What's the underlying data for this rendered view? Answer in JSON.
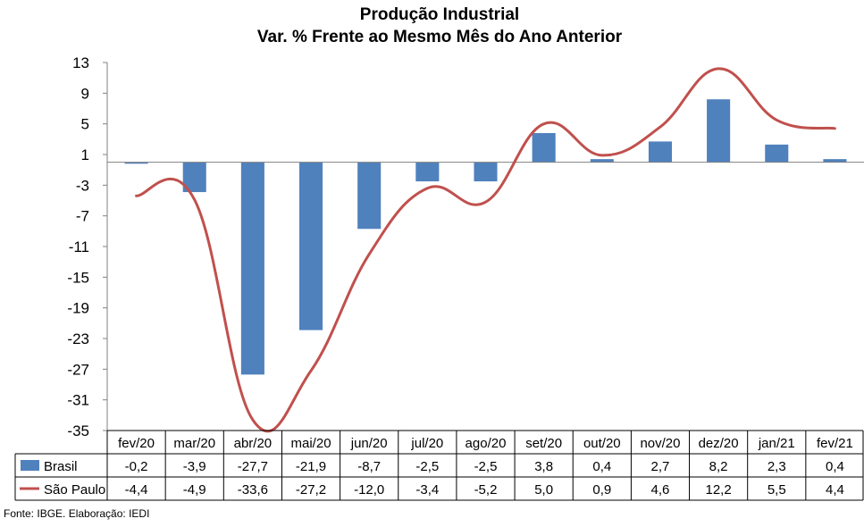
{
  "chart_data": {
    "type": "bar",
    "title": "Produção Industrial",
    "subtitle": "Var. % Frente ao Mesmo Mês do Ano Anterior",
    "categories": [
      "fev/20",
      "mar/20",
      "abr/20",
      "mai/20",
      "jun/20",
      "jul/20",
      "ago/20",
      "set/20",
      "out/20",
      "nov/20",
      "dez/20",
      "jan/21",
      "fev/21"
    ],
    "y_ticks": [
      13,
      9,
      5,
      1,
      -3,
      -7,
      -11,
      -15,
      -19,
      -23,
      -27,
      -31,
      -35
    ],
    "ylim": [
      -35,
      13
    ],
    "grid": false,
    "legend": "data-table",
    "series": [
      {
        "name": "Brasil",
        "type": "bar",
        "color": "#4F81BD",
        "values": [
          -0.2,
          -3.9,
          -27.7,
          -21.9,
          -8.7,
          -2.5,
          -2.5,
          3.8,
          0.4,
          2.7,
          8.2,
          2.3,
          0.4
        ],
        "labels": [
          "-0,2",
          "-3,9",
          "-27,7",
          "-21,9",
          "-8,7",
          "-2,5",
          "-2,5",
          "3,8",
          "0,4",
          "2,7",
          "8,2",
          "2,3",
          "0,4"
        ]
      },
      {
        "name": "São Paulo",
        "type": "line",
        "color": "#C0504D",
        "values": [
          -4.4,
          -4.9,
          -33.6,
          -27.2,
          -12.0,
          -3.4,
          -5.2,
          5.0,
          0.9,
          4.6,
          12.2,
          5.5,
          4.4
        ],
        "labels": [
          "-4,4",
          "-4,9",
          "-33,6",
          "-27,2",
          "-12,0",
          "-3,4",
          "-5,2",
          "5,0",
          "0,9",
          "4,6",
          "12,2",
          "5,5",
          "4,4"
        ]
      }
    ]
  },
  "source": "Fonte: IBGE. Elaboração: IEDI"
}
